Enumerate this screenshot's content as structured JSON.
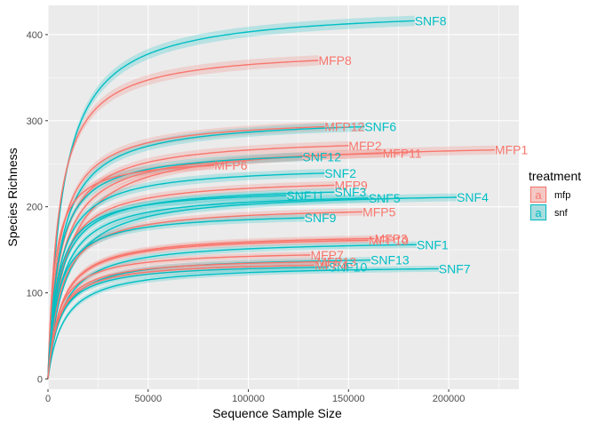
{
  "chart_data": {
    "type": "line",
    "xlabel": "Sequence Sample Size",
    "ylabel": "Species Richness",
    "xlim": [
      0,
      235000
    ],
    "ylim": [
      -12,
      434
    ],
    "x_ticks": [
      0,
      50000,
      100000,
      150000,
      200000
    ],
    "x_tick_labels": [
      "0",
      "50000",
      "100000",
      "150000",
      "200000"
    ],
    "y_ticks": [
      0,
      100,
      200,
      300,
      400
    ],
    "y_tick_labels": [
      "0",
      "100",
      "200",
      "300",
      "400"
    ],
    "grid": true,
    "legend": {
      "title": "treatment",
      "placement": "right",
      "entries": [
        {
          "label": "mfp",
          "key_glyph": "a",
          "color": "#F8766D",
          "fill": "#F4C9C5"
        },
        {
          "label": "snf",
          "key_glyph": "a",
          "color": "#00BFC4",
          "fill": "#A9DCDE"
        }
      ]
    },
    "colors": {
      "mfp": "#F8766D",
      "snf": "#00BFC4",
      "panel": "#EBEBEB",
      "grid": "#FFFFFF"
    },
    "series": [
      {
        "name": "SNF8",
        "treatment": "snf",
        "x_max": 183000,
        "y_end": 416
      },
      {
        "name": "MFP8",
        "treatment": "mfp",
        "x_max": 135000,
        "y_end": 370
      },
      {
        "name": "MFP12",
        "treatment": "mfp",
        "x_max": 138000,
        "y_end": 293
      },
      {
        "name": "SNF6",
        "treatment": "snf",
        "x_max": 158000,
        "y_end": 293
      },
      {
        "name": "MFP2",
        "treatment": "mfp",
        "x_max": 150000,
        "y_end": 271
      },
      {
        "name": "MFP1",
        "treatment": "mfp",
        "x_max": 223000,
        "y_end": 266
      },
      {
        "name": "MFP11",
        "treatment": "mfp",
        "x_max": 167000,
        "y_end": 262
      },
      {
        "name": "SNF12",
        "treatment": "snf",
        "x_max": 127000,
        "y_end": 258
      },
      {
        "name": "MFP6",
        "treatment": "mfp",
        "x_max": 83000,
        "y_end": 248
      },
      {
        "name": "SNF2",
        "treatment": "snf",
        "x_max": 138000,
        "y_end": 239
      },
      {
        "name": "MFP9",
        "treatment": "mfp",
        "x_max": 143000,
        "y_end": 225
      },
      {
        "name": "SNF3",
        "treatment": "snf",
        "x_max": 143000,
        "y_end": 217
      },
      {
        "name": "SNF11",
        "treatment": "snf",
        "x_max": 119000,
        "y_end": 213
      },
      {
        "name": "SNF4",
        "treatment": "snf",
        "x_max": 204000,
        "y_end": 211
      },
      {
        "name": "SNF5",
        "treatment": "snf",
        "x_max": 160000,
        "y_end": 210
      },
      {
        "name": "MFP5",
        "treatment": "mfp",
        "x_max": 157000,
        "y_end": 194
      },
      {
        "name": "SNF9",
        "treatment": "snf",
        "x_max": 128000,
        "y_end": 187
      },
      {
        "name": "MFP3",
        "treatment": "mfp",
        "x_max": 163000,
        "y_end": 163
      },
      {
        "name": "MFP10",
        "treatment": "mfp",
        "x_max": 160000,
        "y_end": 161
      },
      {
        "name": "SNF1",
        "treatment": "snf",
        "x_max": 184000,
        "y_end": 156
      },
      {
        "name": "MFP7",
        "treatment": "mfp",
        "x_max": 131000,
        "y_end": 144
      },
      {
        "name": "SNF13",
        "treatment": "snf",
        "x_max": 161000,
        "y_end": 138
      },
      {
        "name": "MFP13",
        "treatment": "mfp",
        "x_max": 134000,
        "y_end": 136
      },
      {
        "name": "SNF10",
        "treatment": "snf",
        "x_max": 140000,
        "y_end": 130
      },
      {
        "name": "SNF7",
        "treatment": "snf",
        "x_max": 195000,
        "y_end": 128
      },
      {
        "name": "MFP4",
        "treatment": "mfp",
        "x_max": 133000,
        "y_end": 132
      }
    ]
  }
}
